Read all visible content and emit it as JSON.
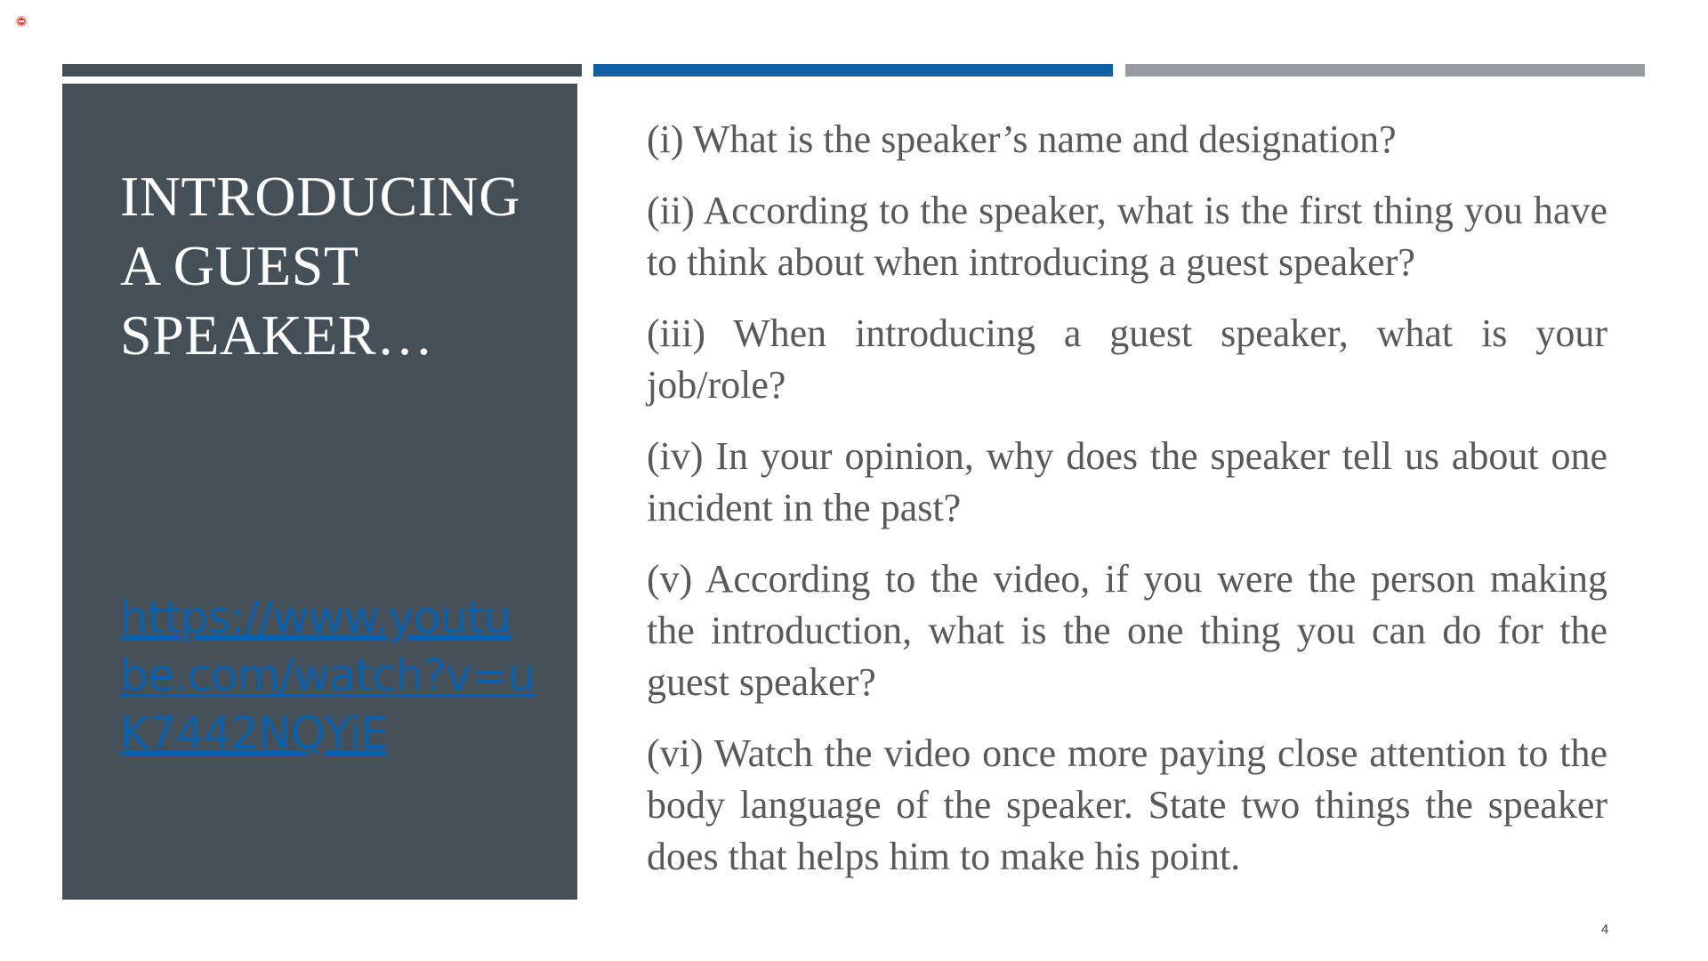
{
  "slide": {
    "title": "INTRODUCING A GUEST SPEAKER…",
    "link_text": "https://www.youtube.com/watch?v=uK7442NQYiE",
    "questions": [
      "(i) What is the speaker’s name and designation?",
      "(ii) According to the speaker, what is the first thing you have to think about when introducing a guest speaker?",
      "(iii) When introducing a guest speaker, what is your job/role?",
      "(iv) In your opinion, why does the speaker tell us about one incident in the past?",
      "(v) According to the video, if you were the person making the introduction, what is the one thing you can do for the guest speaker?",
      "(vi) Watch the video once more paying close attention to the body language of the speaker. State two things the speaker does that helps him to make his point."
    ],
    "slide_number": "4"
  },
  "colors": {
    "panel": "#454f57",
    "accent_dark": "#454f57",
    "accent_blue": "#0c60a6",
    "accent_gray": "#979aa0",
    "link": "#0b5ea8",
    "body_text": "#595959"
  },
  "icons": {
    "recording_indicator": "record-icon"
  }
}
